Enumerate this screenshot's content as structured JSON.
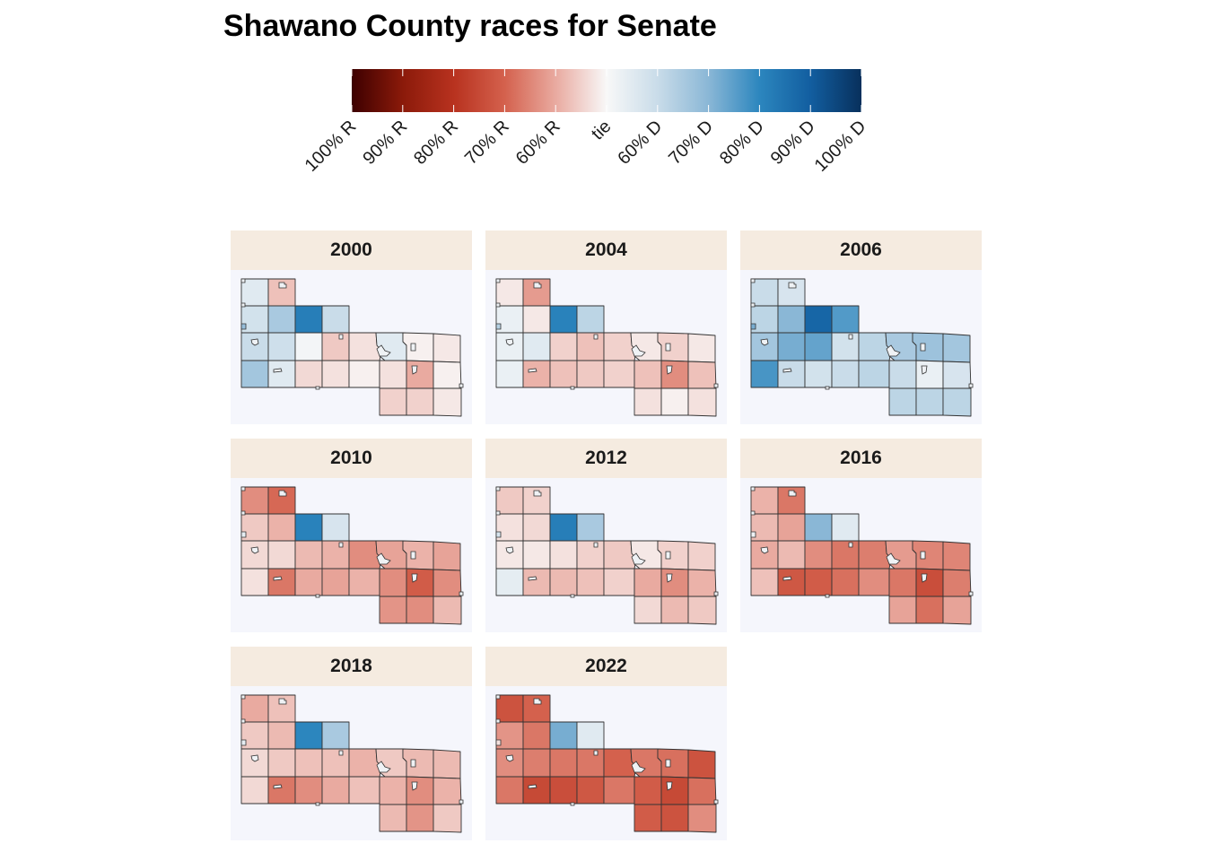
{
  "title": "Shawano County races for Senate",
  "legend": {
    "labels": [
      "100% R",
      "90% R",
      "80% R",
      "70% R",
      "60% R",
      "tie",
      "60% D",
      "70% D",
      "80% D",
      "90% D",
      "100% D"
    ],
    "scale": [
      [
        0.0,
        "#3d0000"
      ],
      [
        0.1,
        "#8b1a0a"
      ],
      [
        0.2,
        "#b8321f"
      ],
      [
        0.3,
        "#d4614d"
      ],
      [
        0.4,
        "#e9aaa0"
      ],
      [
        0.5,
        "#f8f8f8"
      ],
      [
        0.6,
        "#c9dce9"
      ],
      [
        0.7,
        "#8ab7d6"
      ],
      [
        0.8,
        "#2c86be"
      ],
      [
        0.9,
        "#125ea0"
      ],
      [
        1.0,
        "#08305c"
      ]
    ]
  },
  "colors": {
    "strip_bg": "#f5ebe0",
    "map_bg": "#f5f6fc",
    "border": "#333333"
  },
  "panels": [
    {
      "year": "2000",
      "cells": {
        "a1": 0.55,
        "b1": 0.43,
        "a2": 0.58,
        "b2": 0.65,
        "c2": 0.82,
        "d2": 0.6,
        "a3": 0.6,
        "b3": 0.59,
        "c3": 0.51,
        "d3": 0.44,
        "e3": 0.47,
        "f3": 0.55,
        "g3": 0.49,
        "h3": 0.48,
        "a4": 0.66,
        "b4": 0.55,
        "c4": 0.46,
        "d4": 0.47,
        "e4": 0.49,
        "f4": 0.47,
        "g4": 0.4,
        "h4": 0.49,
        "f5": 0.45,
        "g5": 0.45,
        "h5": 0.48
      }
    },
    {
      "year": "2004",
      "cells": {
        "a1": 0.48,
        "b1": 0.38,
        "a2": 0.53,
        "b2": 0.48,
        "c2": 0.81,
        "d2": 0.62,
        "a3": 0.53,
        "b3": 0.55,
        "c3": 0.45,
        "d3": 0.43,
        "e3": 0.45,
        "f3": 0.48,
        "g3": 0.45,
        "h3": 0.48,
        "a4": 0.53,
        "b4": 0.41,
        "c4": 0.43,
        "d4": 0.44,
        "e4": 0.45,
        "f4": 0.43,
        "g4": 0.36,
        "h4": 0.43,
        "f5": 0.47,
        "g5": 0.49,
        "h5": 0.47
      }
    },
    {
      "year": "2006",
      "cells": {
        "a1": 0.6,
        "b1": 0.57,
        "a2": 0.62,
        "b2": 0.7,
        "c2": 0.88,
        "d2": 0.76,
        "a3": 0.66,
        "b3": 0.72,
        "c3": 0.74,
        "d3": 0.58,
        "e3": 0.62,
        "f3": 0.65,
        "g3": 0.67,
        "h3": 0.66,
        "a4": 0.77,
        "b4": 0.6,
        "c4": 0.58,
        "d4": 0.6,
        "e4": 0.62,
        "f4": 0.6,
        "g4": 0.53,
        "h4": 0.57,
        "f5": 0.62,
        "g5": 0.62,
        "h5": 0.62
      }
    },
    {
      "year": "2010",
      "cells": {
        "a1": 0.36,
        "b1": 0.31,
        "a2": 0.44,
        "b2": 0.41,
        "c2": 0.81,
        "d2": 0.57,
        "a3": 0.46,
        "b3": 0.46,
        "c3": 0.42,
        "d3": 0.41,
        "e3": 0.36,
        "f3": 0.39,
        "g3": 0.41,
        "h3": 0.39,
        "a4": 0.47,
        "b4": 0.33,
        "c4": 0.4,
        "d4": 0.39,
        "e4": 0.41,
        "f4": 0.36,
        "g4": 0.29,
        "h4": 0.36,
        "f5": 0.37,
        "g5": 0.36,
        "h5": 0.42
      }
    },
    {
      "year": "2012",
      "cells": {
        "a1": 0.44,
        "b1": 0.45,
        "a2": 0.47,
        "b2": 0.46,
        "c2": 0.82,
        "d2": 0.65,
        "a3": 0.48,
        "b3": 0.48,
        "c3": 0.47,
        "d3": 0.45,
        "e3": 0.44,
        "f3": 0.48,
        "g3": 0.45,
        "h3": 0.45,
        "a4": 0.54,
        "b4": 0.42,
        "c4": 0.42,
        "d4": 0.43,
        "e4": 0.45,
        "f4": 0.4,
        "g4": 0.36,
        "h4": 0.41,
        "f5": 0.46,
        "g5": 0.42,
        "h5": 0.44
      }
    },
    {
      "year": "2016",
      "cells": {
        "a1": 0.41,
        "b1": 0.33,
        "a2": 0.42,
        "b2": 0.39,
        "c2": 0.7,
        "d2": 0.55,
        "a3": 0.4,
        "b3": 0.42,
        "c3": 0.36,
        "d3": 0.33,
        "e3": 0.34,
        "f3": 0.38,
        "g3": 0.35,
        "h3": 0.35,
        "a4": 0.43,
        "b4": 0.28,
        "c4": 0.29,
        "d4": 0.32,
        "e4": 0.36,
        "f4": 0.33,
        "g4": 0.26,
        "h4": 0.34,
        "f5": 0.39,
        "g5": 0.32,
        "h5": 0.39
      }
    },
    {
      "year": "2018",
      "cells": {
        "a1": 0.4,
        "b1": 0.43,
        "a2": 0.44,
        "b2": 0.42,
        "c2": 0.8,
        "d2": 0.65,
        "a3": 0.46,
        "b3": 0.44,
        "c3": 0.43,
        "d3": 0.43,
        "e3": 0.41,
        "f3": 0.44,
        "g3": 0.42,
        "h3": 0.42,
        "a4": 0.46,
        "b4": 0.33,
        "c4": 0.36,
        "d4": 0.4,
        "e4": 0.43,
        "f4": 0.41,
        "g4": 0.36,
        "h4": 0.41,
        "f5": 0.42,
        "g5": 0.37,
        "h5": 0.44
      }
    },
    {
      "year": "2022",
      "cells": {
        "a1": 0.27,
        "b1": 0.3,
        "a2": 0.37,
        "b2": 0.33,
        "c2": 0.72,
        "d2": 0.55,
        "a3": 0.36,
        "b3": 0.34,
        "c3": 0.33,
        "d3": 0.33,
        "e3": 0.3,
        "f3": 0.33,
        "g3": 0.32,
        "h3": 0.27,
        "a4": 0.33,
        "b4": 0.25,
        "c4": 0.26,
        "d4": 0.28,
        "e4": 0.33,
        "f4": 0.29,
        "g4": 0.25,
        "h4": 0.32,
        "f5": 0.29,
        "g5": 0.27,
        "h5": 0.36
      }
    }
  ]
}
